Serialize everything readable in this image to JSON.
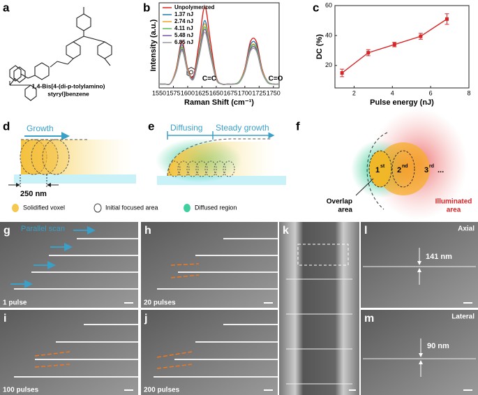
{
  "letters": [
    "a",
    "b",
    "c",
    "d",
    "e",
    "f",
    "g",
    "h",
    "i",
    "j",
    "k",
    "l",
    "m"
  ],
  "molecule": {
    "name": [
      "1,4-Bis[4-(di-p-tolylamino)",
      "styryl]benzene"
    ]
  },
  "chart_data": [
    {
      "type": "line",
      "xlabel": "Raman Shift (cm⁻¹)",
      "ylabel": "Intensity (a.u.)",
      "x": [
        1550,
        1560,
        1570,
        1580,
        1590,
        1600,
        1610,
        1620,
        1630,
        1640,
        1650,
        1660,
        1670,
        1680,
        1690,
        1700,
        1710,
        1720,
        1730,
        1740,
        1750,
        1760
      ],
      "series": [
        {
          "name": "Unpolymerized",
          "color": "#e0201b",
          "values": [
            0.05,
            0.05,
            0.06,
            0.25,
            0.6,
            0.25,
            0.15,
            0.59,
            1.05,
            0.59,
            0.14,
            0.05,
            0.05,
            0.05,
            0.08,
            0.25,
            0.6,
            0.6,
            0.25,
            0.08,
            0.05,
            0.05
          ]
        },
        {
          "name": "1.37 nJ",
          "color": "#1f77b4",
          "values": [
            0.05,
            0.05,
            0.06,
            0.23,
            0.56,
            0.23,
            0.13,
            0.49,
            0.87,
            0.49,
            0.12,
            0.05,
            0.05,
            0.05,
            0.08,
            0.23,
            0.56,
            0.56,
            0.23,
            0.08,
            0.05,
            0.05
          ]
        },
        {
          "name": "2.74 nJ",
          "color": "#f0a020",
          "values": [
            0.05,
            0.05,
            0.06,
            0.23,
            0.53,
            0.23,
            0.12,
            0.47,
            0.83,
            0.47,
            0.12,
            0.05,
            0.05,
            0.05,
            0.08,
            0.23,
            0.53,
            0.53,
            0.23,
            0.08,
            0.05,
            0.05
          ]
        },
        {
          "name": "4.11 nJ",
          "color": "#5cb85c",
          "values": [
            0.05,
            0.05,
            0.06,
            0.22,
            0.52,
            0.22,
            0.12,
            0.45,
            0.79,
            0.45,
            0.12,
            0.05,
            0.05,
            0.05,
            0.08,
            0.22,
            0.52,
            0.52,
            0.22,
            0.08,
            0.05,
            0.05
          ]
        },
        {
          "name": "5.48 nJ",
          "color": "#7b4fa0",
          "values": [
            0.05,
            0.05,
            0.06,
            0.21,
            0.5,
            0.21,
            0.12,
            0.43,
            0.76,
            0.43,
            0.11,
            0.05,
            0.05,
            0.05,
            0.07,
            0.21,
            0.5,
            0.5,
            0.21,
            0.07,
            0.05,
            0.05
          ]
        },
        {
          "name": "6.85 nJ",
          "color": "#999999",
          "values": [
            0.05,
            0.05,
            0.06,
            0.21,
            0.48,
            0.21,
            0.11,
            0.41,
            0.72,
            0.41,
            0.11,
            0.05,
            0.05,
            0.05,
            0.07,
            0.21,
            0.48,
            0.48,
            0.21,
            0.07,
            0.05,
            0.05
          ]
        }
      ],
      "xlim": [
        1550,
        1760
      ],
      "xticks": [
        1550,
        1575,
        1600,
        1625,
        1650,
        1675,
        1700,
        1725,
        1750
      ],
      "ylim": [
        0,
        1.1
      ],
      "legend": "upper left",
      "annotations": [
        "C=C",
        "C=O"
      ]
    },
    {
      "type": "line",
      "xlabel": "Pulse energy (nJ)",
      "ylabel": "DC (%)",
      "x": [
        1.37,
        2.74,
        4.11,
        5.48,
        6.85
      ],
      "series": [
        {
          "color": "#d62728",
          "values": [
            15,
            28.5,
            34,
            39.5,
            51
          ],
          "errors": [
            2.5,
            2,
            1.5,
            2,
            3.5
          ]
        }
      ],
      "xlim": [
        1,
        8
      ],
      "xticks": [
        2,
        4,
        6,
        8
      ],
      "ylim": [
        5,
        60
      ],
      "yticks": [
        20,
        40,
        60
      ]
    }
  ],
  "diagram_d": {
    "arrow": "Growth",
    "width": "250 nm"
  },
  "diagram_e": {
    "arrow1": "Diffusing",
    "arrow2": "Steady growth"
  },
  "diagram_f": {
    "first": "1",
    "first_sup": "st",
    "second": "2",
    "second_sup": "nd",
    "third": "3",
    "third_sup": "rd",
    "more": "...",
    "overlap": [
      "Overlap",
      "area"
    ],
    "illuminated": [
      "Illuminated",
      "area"
    ]
  },
  "legend": [
    "Solidified voxel",
    "Initial focused area",
    "Diffused region"
  ],
  "sem": {
    "scan": "Parallel scan",
    "g": "1 pulse",
    "h": "20 pulses",
    "i": "100 pulses",
    "j": "200 pulses",
    "l_mode": "Axial",
    "l_size": "141 nm",
    "m_mode": "Lateral",
    "m_size": "90 nm"
  }
}
